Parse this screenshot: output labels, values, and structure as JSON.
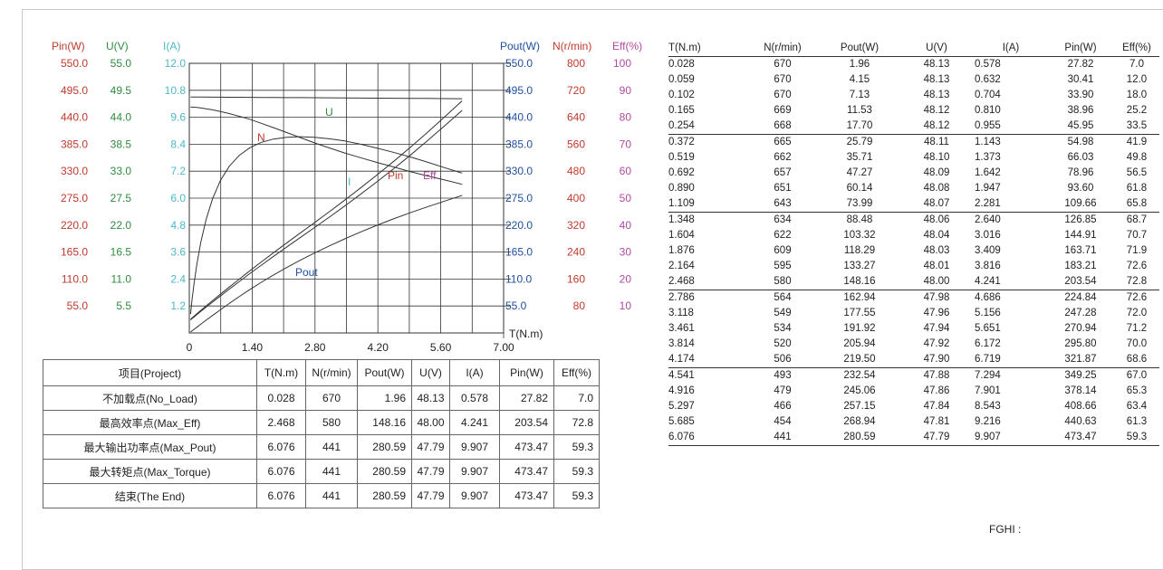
{
  "chart_data": {
    "type": "line",
    "x_axis": {
      "label": "T(N.m)",
      "ticks": [
        "0",
        "1.40",
        "2.80",
        "4.20",
        "5.60",
        "7.00"
      ],
      "range": [
        0,
        7.0
      ]
    },
    "left_axes": [
      {
        "name": "Pin(W)",
        "color": "#c0392b",
        "ticks": [
          "550.0",
          "495.0",
          "440.0",
          "385.0",
          "330.0",
          "275.0",
          "220.0",
          "165.0",
          "110.0",
          "55.0"
        ],
        "range": [
          0,
          550
        ]
      },
      {
        "name": "U(V)",
        "color": "#2e8b3e",
        "ticks": [
          "55.0",
          "49.5",
          "44.0",
          "38.5",
          "33.0",
          "27.5",
          "22.0",
          "16.5",
          "11.0",
          "5.5"
        ],
        "range": [
          0,
          55
        ]
      },
      {
        "name": "I(A)",
        "color": "#4fb8c4",
        "ticks": [
          "12.0",
          "10.8",
          "9.6",
          "8.4",
          "7.2",
          "6.0",
          "4.8",
          "3.6",
          "2.4",
          "1.2"
        ],
        "range": [
          0,
          12
        ]
      }
    ],
    "right_axes": [
      {
        "name": "Pout(W)",
        "color": "#1f4fa0",
        "ticks": [
          "550.0",
          "495.0",
          "440.0",
          "385.0",
          "330.0",
          "275.0",
          "220.0",
          "165.0",
          "110.0",
          "55.0"
        ],
        "range": [
          0,
          550
        ]
      },
      {
        "name": "N(r/min)",
        "color": "#c0392b",
        "ticks": [
          "800",
          "720",
          "640",
          "560",
          "480",
          "400",
          "320",
          "240",
          "160",
          "80"
        ],
        "range": [
          0,
          800
        ]
      },
      {
        "name": "Eff(%)",
        "color": "#b04aa0",
        "ticks": [
          "100",
          "90",
          "80",
          "70",
          "60",
          "50",
          "40",
          "30",
          "20",
          "10"
        ],
        "range": [
          0,
          100
        ]
      }
    ],
    "curve_labels": [
      {
        "name": "U",
        "color": "#2e8b3e"
      },
      {
        "name": "N",
        "color": "#c0392b"
      },
      {
        "name": "I",
        "color": "#4fb8c4"
      },
      {
        "name": "Pin",
        "color": "#c0392b"
      },
      {
        "name": "Eff",
        "color": "#b04aa0"
      },
      {
        "name": "Pout",
        "color": "#1f4fa0"
      }
    ],
    "x": [
      0.028,
      0.059,
      0.102,
      0.165,
      0.254,
      0.372,
      0.519,
      0.692,
      0.89,
      1.109,
      1.348,
      1.604,
      1.876,
      2.164,
      2.468,
      2.786,
      3.118,
      3.461,
      3.814,
      4.174,
      4.541,
      4.916,
      5.297,
      5.685,
      6.076
    ],
    "series": [
      {
        "name": "N",
        "axis": "N(r/min)",
        "values": [
          670,
          670,
          670,
          669,
          668,
          665,
          662,
          657,
          651,
          643,
          634,
          622,
          609,
          595,
          580,
          564,
          549,
          534,
          520,
          506,
          493,
          479,
          466,
          454,
          441
        ]
      },
      {
        "name": "Pout",
        "axis": "Pout(W)",
        "values": [
          1.96,
          4.15,
          7.13,
          11.53,
          17.7,
          25.79,
          35.71,
          47.27,
          60.14,
          73.99,
          88.48,
          103.32,
          118.29,
          133.27,
          148.16,
          162.94,
          177.55,
          191.92,
          205.94,
          219.5,
          232.54,
          245.06,
          257.15,
          268.94,
          280.59
        ]
      },
      {
        "name": "U",
        "axis": "U(V)",
        "values": [
          48.13,
          48.13,
          48.13,
          48.12,
          48.12,
          48.11,
          48.1,
          48.09,
          48.08,
          48.07,
          48.06,
          48.04,
          48.03,
          48.01,
          48.0,
          47.98,
          47.96,
          47.94,
          47.92,
          47.9,
          47.88,
          47.86,
          47.84,
          47.81,
          47.79
        ]
      },
      {
        "name": "I",
        "axis": "I(A)",
        "values": [
          0.578,
          0.632,
          0.704,
          0.81,
          0.955,
          1.143,
          1.373,
          1.642,
          1.947,
          2.281,
          2.64,
          3.016,
          3.409,
          3.816,
          4.241,
          4.686,
          5.156,
          5.651,
          6.172,
          6.719,
          7.294,
          7.901,
          8.543,
          9.216,
          9.907
        ]
      },
      {
        "name": "Pin",
        "axis": "Pin(W)",
        "values": [
          27.82,
          30.41,
          33.9,
          38.96,
          45.95,
          54.98,
          66.03,
          78.96,
          93.6,
          109.66,
          126.85,
          144.91,
          163.71,
          183.21,
          203.54,
          224.84,
          247.28,
          270.94,
          295.8,
          321.87,
          349.25,
          378.14,
          408.66,
          440.63,
          473.47
        ]
      },
      {
        "name": "Eff",
        "axis": "Eff(%)",
        "values": [
          7.0,
          12.0,
          18.0,
          25.2,
          33.5,
          41.9,
          49.8,
          56.5,
          61.8,
          65.8,
          68.7,
          70.7,
          71.9,
          72.6,
          72.8,
          72.6,
          72.0,
          71.2,
          70.0,
          68.6,
          67.0,
          65.3,
          63.4,
          61.3,
          59.3
        ]
      }
    ],
    "grid": true
  },
  "summary": {
    "headers": [
      "项目(Project)",
      "T(N.m)",
      "N(r/min)",
      "Pout(W)",
      "U(V)",
      "I(A)",
      "Pin(W)",
      "Eff(%)"
    ],
    "rows": [
      [
        "不加载点(No_Load)",
        "0.028",
        "670",
        "1.96",
        "48.13",
        "0.578",
        "27.82",
        "7.0"
      ],
      [
        "最高效率点(Max_Eff)",
        "2.468",
        "580",
        "148.16",
        "48.00",
        "4.241",
        "203.54",
        "72.8"
      ],
      [
        "最大输出功率点(Max_Pout)",
        "6.076",
        "441",
        "280.59",
        "47.79",
        "9.907",
        "473.47",
        "59.3"
      ],
      [
        "最大转矩点(Max_Torque)",
        "6.076",
        "441",
        "280.59",
        "47.79",
        "9.907",
        "473.47",
        "59.3"
      ],
      [
        "结束(The End)",
        "6.076",
        "441",
        "280.59",
        "47.79",
        "9.907",
        "473.47",
        "59.3"
      ]
    ]
  },
  "data_table": {
    "headers": [
      "T(N.m)",
      "N(r/min)",
      "Pout(W)",
      "U(V)",
      "I(A)",
      "Pin(W)",
      "Eff(%)"
    ],
    "rows": [
      [
        "0.028",
        "670",
        "1.96",
        "48.13",
        "0.578",
        "27.82",
        "7.0"
      ],
      [
        "0.059",
        "670",
        "4.15",
        "48.13",
        "0.632",
        "30.41",
        "12.0"
      ],
      [
        "0.102",
        "670",
        "7.13",
        "48.13",
        "0.704",
        "33.90",
        "18.0"
      ],
      [
        "0.165",
        "669",
        "11.53",
        "48.12",
        "0.810",
        "38.96",
        "25.2"
      ],
      [
        "0.254",
        "668",
        "17.70",
        "48.12",
        "0.955",
        "45.95",
        "33.5"
      ],
      [
        "0.372",
        "665",
        "25.79",
        "48.11",
        "1.143",
        "54.98",
        "41.9"
      ],
      [
        "0.519",
        "662",
        "35.71",
        "48.10",
        "1.373",
        "66.03",
        "49.8"
      ],
      [
        "0.692",
        "657",
        "47.27",
        "48.09",
        "1.642",
        "78.96",
        "56.5"
      ],
      [
        "0.890",
        "651",
        "60.14",
        "48.08",
        "1.947",
        "93.60",
        "61.8"
      ],
      [
        "1.109",
        "643",
        "73.99",
        "48.07",
        "2.281",
        "109.66",
        "65.8"
      ],
      [
        "1.348",
        "634",
        "88.48",
        "48.06",
        "2.640",
        "126.85",
        "68.7"
      ],
      [
        "1.604",
        "622",
        "103.32",
        "48.04",
        "3.016",
        "144.91",
        "70.7"
      ],
      [
        "1.876",
        "609",
        "118.29",
        "48.03",
        "3.409",
        "163.71",
        "71.9"
      ],
      [
        "2.164",
        "595",
        "133.27",
        "48.01",
        "3.816",
        "183.21",
        "72.6"
      ],
      [
        "2.468",
        "580",
        "148.16",
        "48.00",
        "4.241",
        "203.54",
        "72.8"
      ],
      [
        "2.786",
        "564",
        "162.94",
        "47.98",
        "4.686",
        "224.84",
        "72.6"
      ],
      [
        "3.118",
        "549",
        "177.55",
        "47.96",
        "5.156",
        "247.28",
        "72.0"
      ],
      [
        "3.461",
        "534",
        "191.92",
        "47.94",
        "5.651",
        "270.94",
        "71.2"
      ],
      [
        "3.814",
        "520",
        "205.94",
        "47.92",
        "6.172",
        "295.80",
        "70.0"
      ],
      [
        "4.174",
        "506",
        "219.50",
        "47.90",
        "6.719",
        "321.87",
        "68.6"
      ],
      [
        "4.541",
        "493",
        "232.54",
        "47.88",
        "7.294",
        "349.25",
        "67.0"
      ],
      [
        "4.916",
        "479",
        "245.06",
        "47.86",
        "7.901",
        "378.14",
        "65.3"
      ],
      [
        "5.297",
        "466",
        "257.15",
        "47.84",
        "8.543",
        "408.66",
        "63.4"
      ],
      [
        "5.685",
        "454",
        "268.94",
        "47.81",
        "9.216",
        "440.63",
        "61.3"
      ],
      [
        "6.076",
        "441",
        "280.59",
        "47.79",
        "9.907",
        "473.47",
        "59.3"
      ]
    ]
  },
  "footer_code": "FGHI   :"
}
